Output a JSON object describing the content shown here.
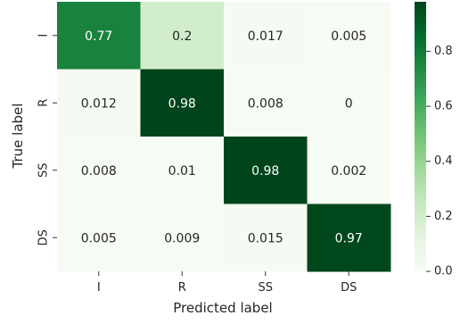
{
  "chart_data": {
    "type": "heatmap",
    "title": "",
    "xlabel": "Predicted label",
    "ylabel": "True label",
    "x_categories": [
      "I",
      "R",
      "SS",
      "DS"
    ],
    "y_categories": [
      "I",
      "R",
      "SS",
      "DS"
    ],
    "matrix": [
      [
        0.77,
        0.2,
        0.017,
        0.005
      ],
      [
        0.012,
        0.98,
        0.008,
        0
      ],
      [
        0.008,
        0.01,
        0.98,
        0.002
      ],
      [
        0.005,
        0.009,
        0.015,
        0.97
      ]
    ],
    "value_labels": [
      [
        "0.77",
        "0.2",
        "0.017",
        "0.005"
      ],
      [
        "0.012",
        "0.98",
        "0.008",
        "0"
      ],
      [
        "0.008",
        "0.01",
        "0.98",
        "0.002"
      ],
      [
        "0.005",
        "0.009",
        "0.015",
        "0.97"
      ]
    ],
    "colorbar": {
      "min": 0,
      "max": 0.98,
      "ticks": [
        0.0,
        0.2,
        0.4,
        0.6,
        0.8
      ],
      "tick_labels": [
        "0.0",
        "0.2",
        "0.4",
        "0.6",
        "0.8"
      ]
    },
    "colormap": "Greens",
    "grid": false
  }
}
